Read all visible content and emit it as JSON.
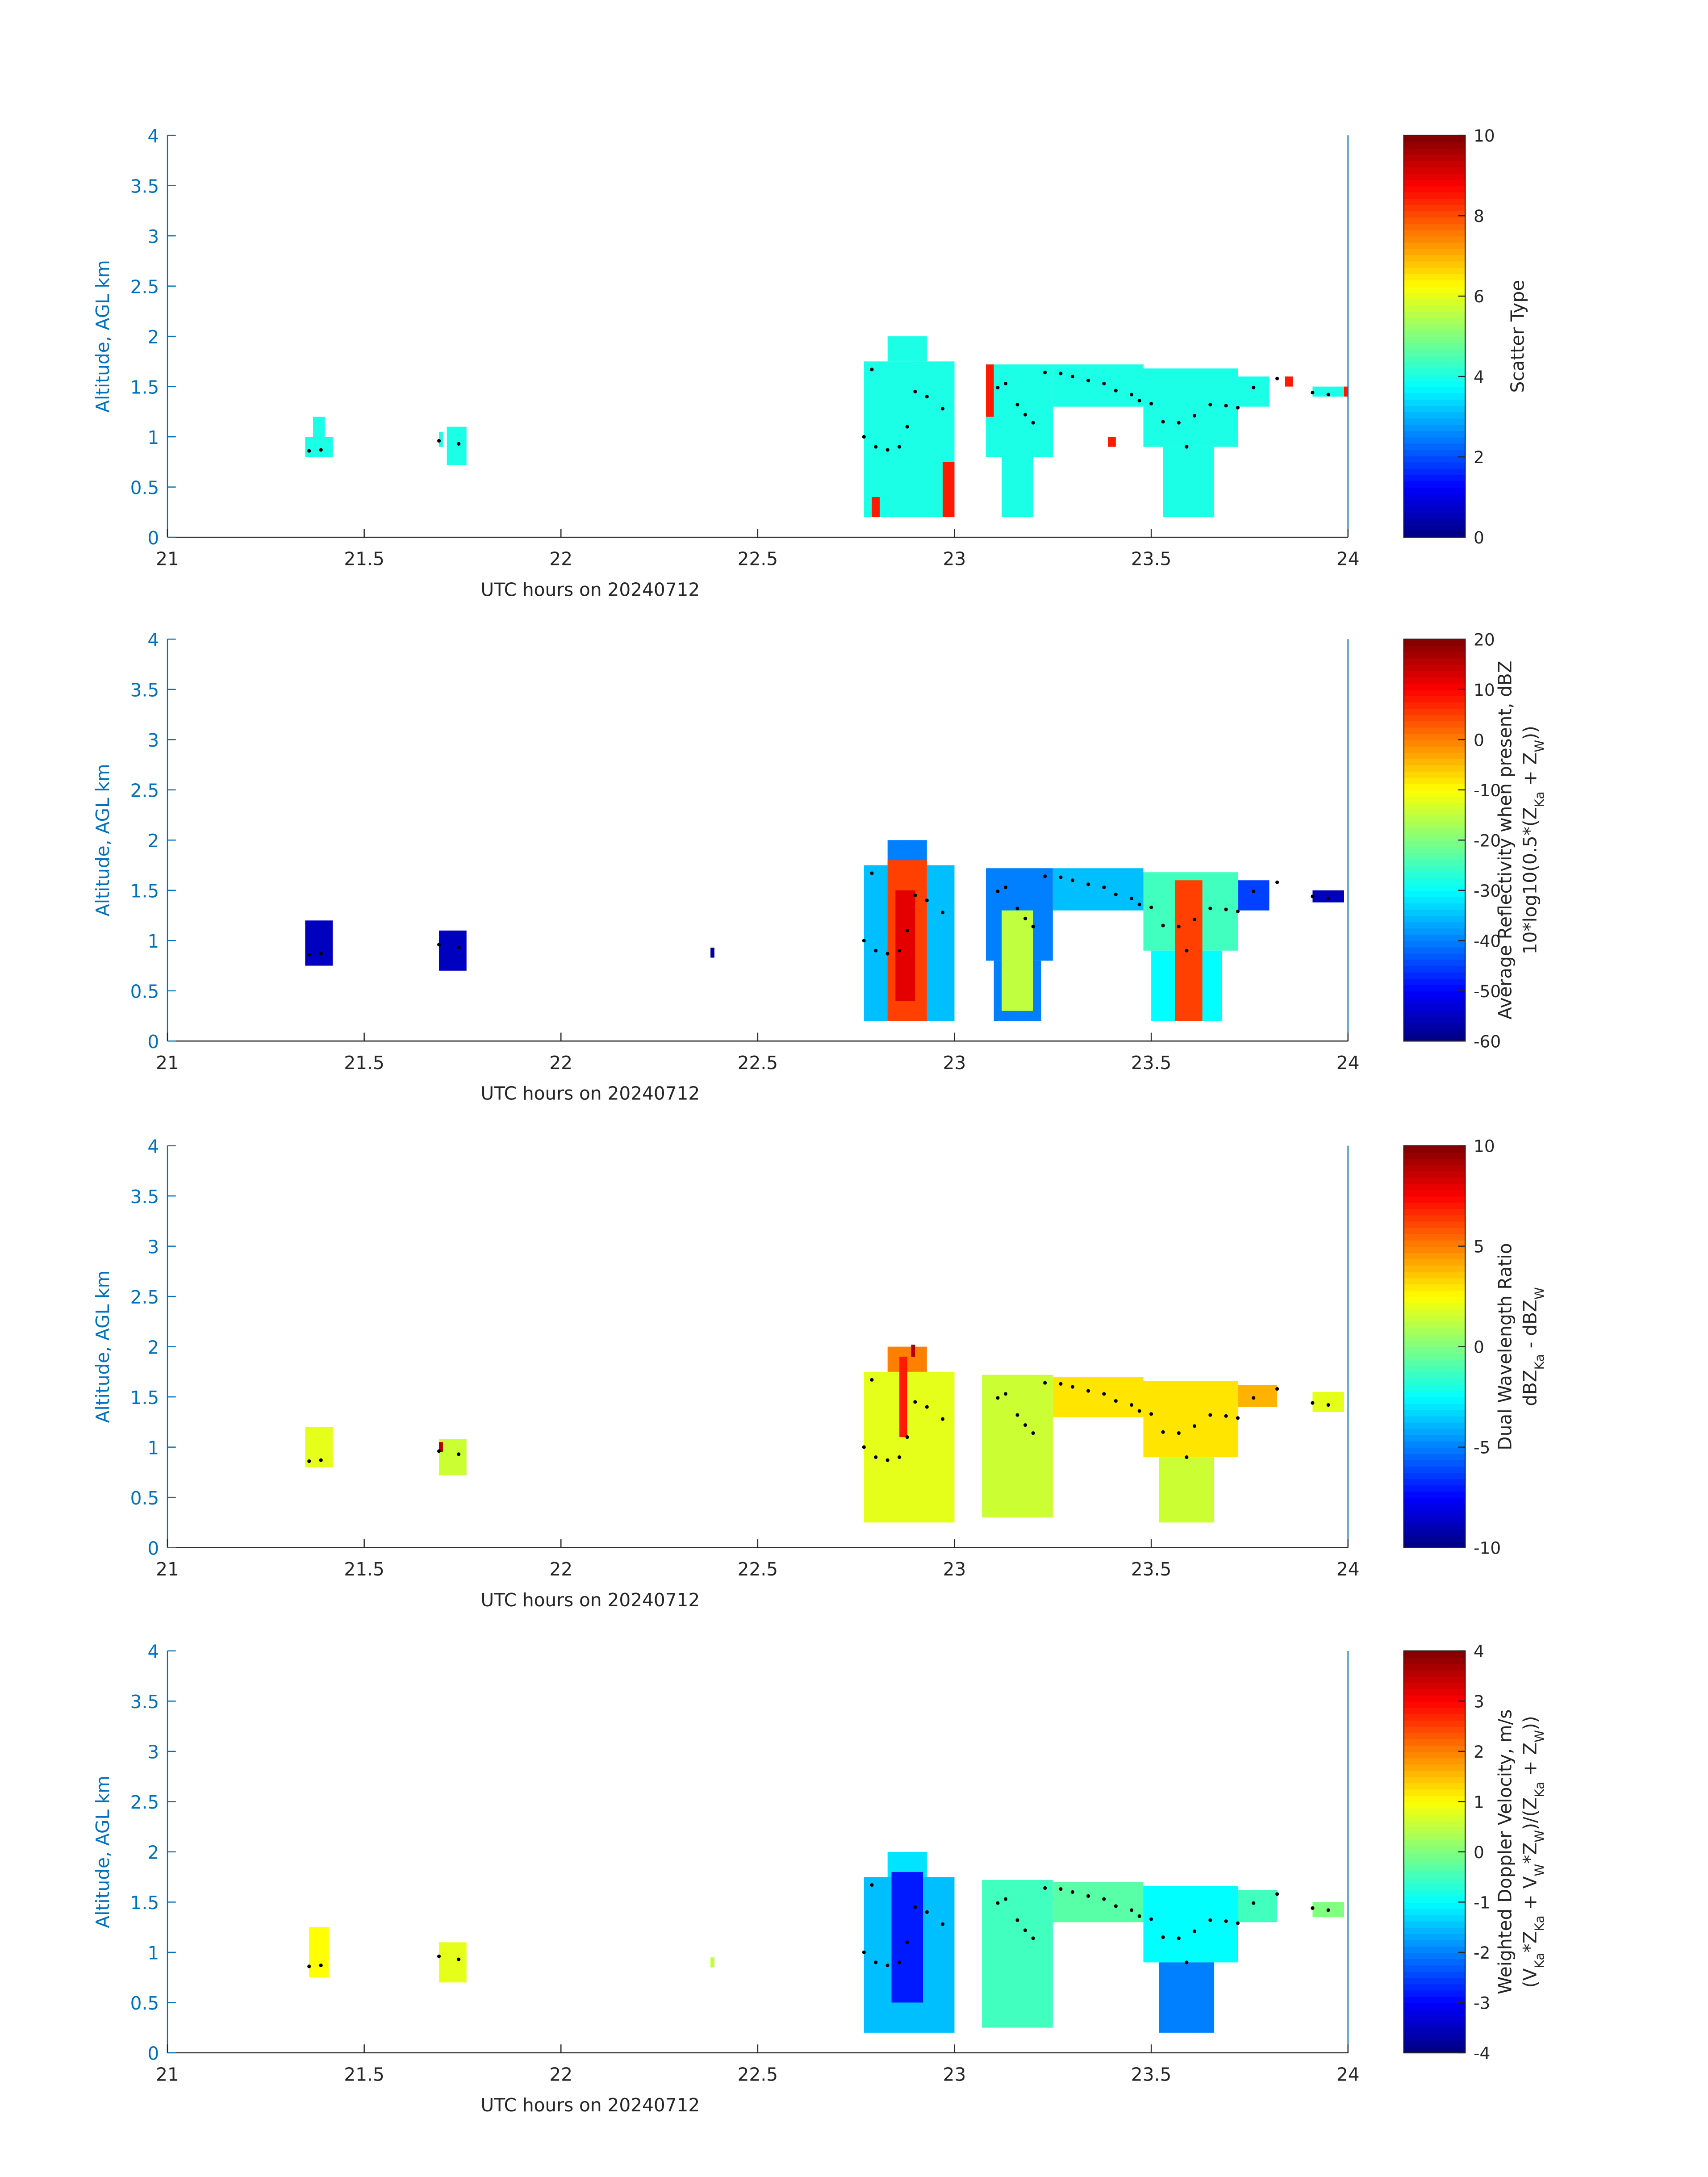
{
  "chart_data": [
    {
      "type": "heatmap",
      "xlabel": "UTC hours on 20240712",
      "ylabel": "Altitude, AGL km",
      "xlim": [
        21,
        24
      ],
      "xticks": [
        21,
        21.5,
        22,
        22.5,
        23,
        23.5,
        24
      ],
      "ylim": [
        0,
        4
      ],
      "yticks": [
        0,
        0.5,
        1,
        1.5,
        2,
        2.5,
        3,
        3.5,
        4
      ],
      "colormap": "jet",
      "clim": [
        0,
        10
      ],
      "cticks": [
        0,
        2,
        4,
        6,
        8,
        10
      ],
      "cbar_label": [
        [
          "Scatter Type"
        ]
      ],
      "regions": [
        [
          21.35,
          21.42,
          0.8,
          1.0,
          4
        ],
        [
          21.37,
          21.4,
          1.0,
          1.2,
          4
        ],
        [
          21.69,
          21.7,
          0.9,
          1.05,
          4
        ],
        [
          21.71,
          21.76,
          0.72,
          1.1,
          4
        ],
        [
          22.77,
          23.0,
          0.2,
          1.75,
          4
        ],
        [
          22.83,
          22.93,
          1.75,
          2.0,
          4
        ],
        [
          23.08,
          23.25,
          0.8,
          1.72,
          4
        ],
        [
          23.12,
          23.2,
          0.2,
          0.8,
          4
        ],
        [
          23.25,
          23.48,
          1.3,
          1.72,
          4
        ],
        [
          23.48,
          23.72,
          0.9,
          1.68,
          4
        ],
        [
          23.53,
          23.66,
          0.2,
          0.9,
          4
        ],
        [
          23.72,
          23.8,
          1.3,
          1.6,
          4
        ],
        [
          23.91,
          23.99,
          1.4,
          1.5,
          4
        ],
        [
          22.79,
          22.81,
          0.2,
          0.4,
          8.5
        ],
        [
          22.97,
          23.0,
          0.2,
          0.75,
          8.5
        ],
        [
          23.08,
          23.1,
          1.2,
          1.72,
          8.5
        ],
        [
          23.39,
          23.41,
          0.9,
          1.0,
          8.5
        ],
        [
          23.99,
          24.0,
          1.4,
          1.5,
          8.5
        ],
        [
          23.84,
          23.86,
          1.5,
          1.6,
          8.5
        ]
      ],
      "dots": {
        "x": [
          21.36,
          21.39,
          21.69,
          21.74,
          22.77,
          22.8,
          22.83,
          22.86,
          22.88,
          22.79,
          22.9,
          22.93,
          22.97,
          23.11,
          23.13,
          23.16,
          23.18,
          23.2,
          23.23,
          23.27,
          23.3,
          23.34,
          23.38,
          23.41,
          23.45,
          23.47,
          23.5,
          23.53,
          23.57,
          23.59,
          23.61,
          23.65,
          23.69,
          23.72,
          23.76,
          23.82,
          23.91,
          23.95
        ],
        "y": [
          0.86,
          0.87,
          0.96,
          0.93,
          1.0,
          0.9,
          0.87,
          0.9,
          1.1,
          1.67,
          1.45,
          1.4,
          1.28,
          1.49,
          1.53,
          1.32,
          1.22,
          1.14,
          1.64,
          1.63,
          1.6,
          1.56,
          1.53,
          1.46,
          1.42,
          1.36,
          1.33,
          1.15,
          1.14,
          0.9,
          1.21,
          1.32,
          1.31,
          1.29,
          1.49,
          1.58,
          1.44,
          1.42
        ]
      }
    },
    {
      "type": "heatmap",
      "xlabel": "UTC hours on 20240712",
      "ylabel": "Altitude, AGL km",
      "xlim": [
        21,
        24
      ],
      "xticks": [
        21,
        21.5,
        22,
        22.5,
        23,
        23.5,
        24
      ],
      "ylim": [
        0,
        4
      ],
      "yticks": [
        0,
        0.5,
        1,
        1.5,
        2,
        2.5,
        3,
        3.5,
        4
      ],
      "colormap": "jet",
      "clim": [
        -60,
        20
      ],
      "cticks": [
        -60,
        -50,
        -40,
        -30,
        -20,
        -10,
        0,
        10,
        20
      ],
      "cbar_label": [
        [
          "Average Reflectivity when present, dBZ"
        ],
        [
          "10*log10(0.5*(Z",
          {
            "sub": "Ka"
          },
          " + Z",
          {
            "sub": "W"
          },
          "))"
        ]
      ],
      "regions": [
        [
          21.35,
          21.42,
          0.75,
          1.2,
          -55
        ],
        [
          21.69,
          21.76,
          0.7,
          1.1,
          -55
        ],
        [
          22.38,
          22.39,
          0.83,
          0.93,
          -58
        ],
        [
          22.77,
          23.0,
          0.2,
          1.75,
          -35
        ],
        [
          22.83,
          22.93,
          1.75,
          2.0,
          -40
        ],
        [
          22.83,
          22.93,
          0.2,
          1.8,
          5
        ],
        [
          22.85,
          22.9,
          0.4,
          1.5,
          12
        ],
        [
          23.08,
          23.25,
          0.8,
          1.72,
          -40
        ],
        [
          23.1,
          23.22,
          0.2,
          0.8,
          -40
        ],
        [
          23.12,
          23.2,
          0.3,
          1.3,
          -15
        ],
        [
          23.25,
          23.48,
          1.3,
          1.72,
          -35
        ],
        [
          23.48,
          23.72,
          0.9,
          1.68,
          -25
        ],
        [
          23.5,
          23.68,
          0.2,
          0.9,
          -30
        ],
        [
          23.56,
          23.63,
          0.2,
          1.6,
          5
        ],
        [
          23.72,
          23.8,
          1.3,
          1.6,
          -45
        ],
        [
          23.91,
          23.99,
          1.38,
          1.5,
          -55
        ]
      ],
      "dots": {
        "x": [
          21.36,
          21.39,
          21.69,
          21.74,
          22.77,
          22.8,
          22.83,
          22.86,
          22.88,
          22.79,
          22.9,
          22.93,
          22.97,
          23.11,
          23.13,
          23.16,
          23.18,
          23.2,
          23.23,
          23.27,
          23.3,
          23.34,
          23.38,
          23.41,
          23.45,
          23.47,
          23.5,
          23.53,
          23.57,
          23.59,
          23.61,
          23.65,
          23.69,
          23.72,
          23.76,
          23.82,
          23.91,
          23.95
        ],
        "y": [
          0.86,
          0.87,
          0.96,
          0.93,
          1.0,
          0.9,
          0.87,
          0.9,
          1.1,
          1.67,
          1.45,
          1.4,
          1.28,
          1.49,
          1.53,
          1.32,
          1.22,
          1.14,
          1.64,
          1.63,
          1.6,
          1.56,
          1.53,
          1.46,
          1.42,
          1.36,
          1.33,
          1.15,
          1.14,
          0.9,
          1.21,
          1.32,
          1.31,
          1.29,
          1.49,
          1.58,
          1.44,
          1.42
        ]
      }
    },
    {
      "type": "heatmap",
      "xlabel": "UTC hours on 20240712",
      "ylabel": "Altitude, AGL km",
      "xlim": [
        21,
        24
      ],
      "xticks": [
        21,
        21.5,
        22,
        22.5,
        23,
        23.5,
        24
      ],
      "ylim": [
        0,
        4
      ],
      "yticks": [
        0,
        0.5,
        1,
        1.5,
        2,
        2.5,
        3,
        3.5,
        4
      ],
      "colormap": "jet",
      "clim": [
        -10,
        10
      ],
      "cticks": [
        -10,
        -5,
        0,
        5,
        10
      ],
      "cbar_label": [
        [
          "Dual Wavelength Ratio"
        ],
        [
          "dBZ",
          {
            "sub": "Ka"
          },
          " - dBZ",
          {
            "sub": "W"
          }
        ]
      ],
      "regions": [
        [
          21.35,
          21.42,
          0.8,
          1.2,
          2
        ],
        [
          21.69,
          21.76,
          0.72,
          1.08,
          1.5
        ],
        [
          21.69,
          21.7,
          0.95,
          1.05,
          9
        ],
        [
          22.77,
          23.0,
          0.25,
          1.75,
          2
        ],
        [
          22.83,
          22.93,
          1.75,
          2.0,
          5
        ],
        [
          22.86,
          22.88,
          1.1,
          1.9,
          7
        ],
        [
          22.89,
          22.9,
          1.9,
          2.02,
          9
        ],
        [
          23.07,
          23.25,
          0.3,
          1.72,
          1.5
        ],
        [
          23.25,
          23.48,
          1.3,
          1.7,
          3
        ],
        [
          23.48,
          23.72,
          0.9,
          1.66,
          3
        ],
        [
          23.52,
          23.66,
          0.25,
          0.9,
          1.5
        ],
        [
          23.72,
          23.82,
          1.4,
          1.62,
          4
        ],
        [
          23.91,
          23.99,
          1.35,
          1.55,
          2
        ]
      ],
      "dots": {
        "x": [
          21.36,
          21.39,
          21.69,
          21.74,
          22.77,
          22.8,
          22.83,
          22.86,
          22.88,
          22.79,
          22.9,
          22.93,
          22.97,
          23.11,
          23.13,
          23.16,
          23.18,
          23.2,
          23.23,
          23.27,
          23.3,
          23.34,
          23.38,
          23.41,
          23.45,
          23.47,
          23.5,
          23.53,
          23.57,
          23.59,
          23.61,
          23.65,
          23.69,
          23.72,
          23.76,
          23.82,
          23.91,
          23.95
        ],
        "y": [
          0.86,
          0.87,
          0.96,
          0.93,
          1.0,
          0.9,
          0.87,
          0.9,
          1.1,
          1.67,
          1.45,
          1.4,
          1.28,
          1.49,
          1.53,
          1.32,
          1.22,
          1.14,
          1.64,
          1.63,
          1.6,
          1.56,
          1.53,
          1.46,
          1.42,
          1.36,
          1.33,
          1.15,
          1.14,
          0.9,
          1.21,
          1.32,
          1.31,
          1.29,
          1.49,
          1.58,
          1.44,
          1.42
        ]
      }
    },
    {
      "type": "heatmap",
      "xlabel": "UTC hours on 20240712",
      "ylabel": "Altitude, AGL km",
      "xlim": [
        21,
        24
      ],
      "xticks": [
        21,
        21.5,
        22,
        22.5,
        23,
        23.5,
        24
      ],
      "ylim": [
        0,
        4
      ],
      "yticks": [
        0,
        0.5,
        1,
        1.5,
        2,
        2.5,
        3,
        3.5,
        4
      ],
      "colormap": "jet",
      "clim": [
        -4,
        4
      ],
      "cticks": [
        -4,
        -3,
        -2,
        -1,
        0,
        1,
        2,
        3,
        4
      ],
      "cbar_label": [
        [
          "Weighted Doppler Velocity, m/s"
        ],
        [
          "(V",
          {
            "sub": "Ka"
          },
          "*Z",
          {
            "sub": "Ka"
          },
          " + V",
          {
            "sub": "W"
          },
          "*Z",
          {
            "sub": "W"
          },
          ")/(Z",
          {
            "sub": "Ka"
          },
          " + Z",
          {
            "sub": "W"
          },
          "))"
        ]
      ],
      "regions": [
        [
          21.36,
          21.41,
          0.75,
          1.25,
          1
        ],
        [
          21.69,
          21.76,
          0.7,
          1.1,
          0.8
        ],
        [
          22.38,
          22.39,
          0.85,
          0.95,
          0.5
        ],
        [
          22.77,
          23.0,
          0.2,
          1.75,
          -1.5
        ],
        [
          22.83,
          22.93,
          1.75,
          2.0,
          -1.2
        ],
        [
          22.84,
          22.92,
          0.5,
          1.8,
          -2.8
        ],
        [
          23.07,
          23.25,
          0.25,
          1.72,
          -0.5
        ],
        [
          23.25,
          23.48,
          1.3,
          1.7,
          -0.3
        ],
        [
          23.48,
          23.72,
          0.9,
          1.66,
          -1
        ],
        [
          23.52,
          23.66,
          0.2,
          0.9,
          -2
        ],
        [
          23.72,
          23.82,
          1.3,
          1.62,
          -0.5
        ],
        [
          23.91,
          23.99,
          1.35,
          1.5,
          0
        ]
      ],
      "dots": {
        "x": [
          21.36,
          21.39,
          21.69,
          21.74,
          22.77,
          22.8,
          22.83,
          22.86,
          22.88,
          22.79,
          22.9,
          22.93,
          22.97,
          23.11,
          23.13,
          23.16,
          23.18,
          23.2,
          23.23,
          23.27,
          23.3,
          23.34,
          23.38,
          23.41,
          23.45,
          23.47,
          23.5,
          23.53,
          23.57,
          23.59,
          23.61,
          23.65,
          23.69,
          23.72,
          23.76,
          23.82,
          23.91,
          23.95
        ],
        "y": [
          0.86,
          0.87,
          0.96,
          0.93,
          1.0,
          0.9,
          0.87,
          0.9,
          1.1,
          1.67,
          1.45,
          1.4,
          1.28,
          1.49,
          1.53,
          1.32,
          1.22,
          1.14,
          1.64,
          1.63,
          1.6,
          1.56,
          1.53,
          1.46,
          1.42,
          1.36,
          1.33,
          1.15,
          1.14,
          0.9,
          1.21,
          1.32,
          1.31,
          1.29,
          1.49,
          1.58,
          1.44,
          1.42
        ]
      }
    }
  ]
}
